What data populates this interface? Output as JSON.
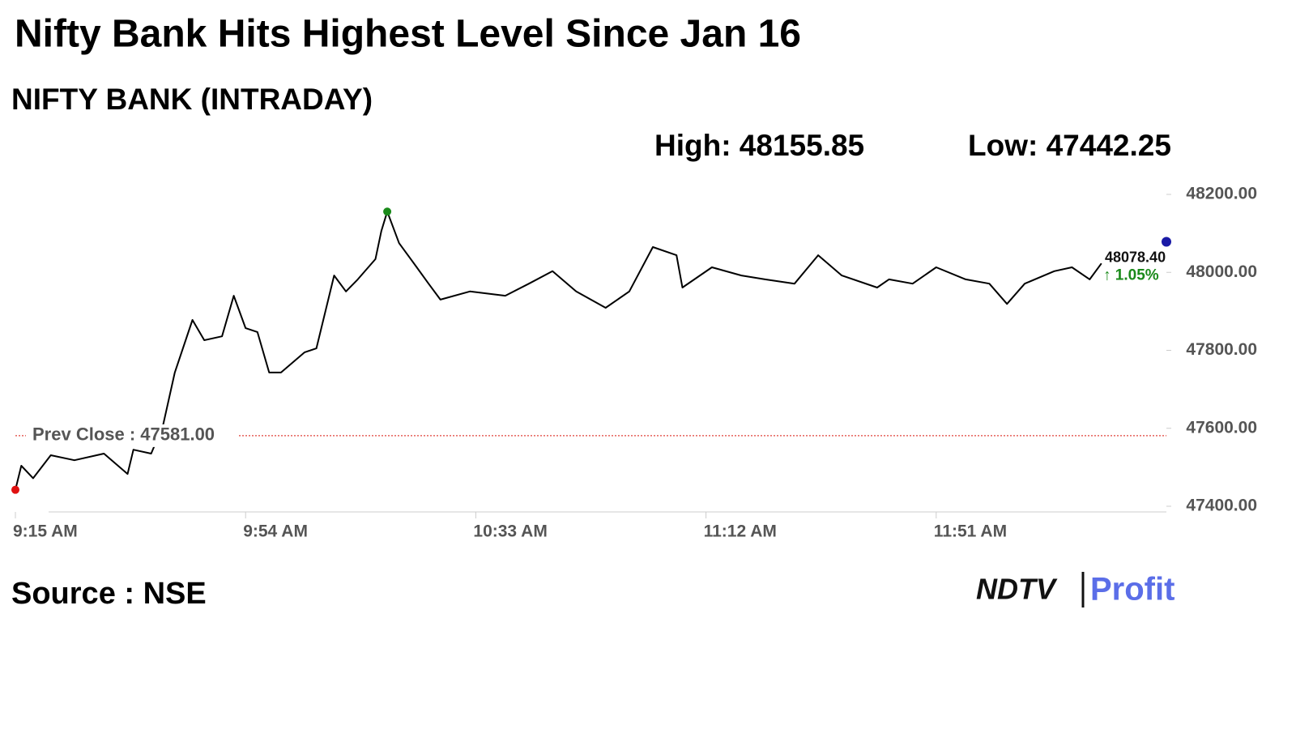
{
  "chart_data": {
    "type": "line",
    "title": "Nifty Bank Hits Highest Level Since Jan 16",
    "subtitle": "NIFTY BANK (INTRADAY)",
    "high_text": "High: 48155.85",
    "low_text": "Low: 47442.25",
    "source": "Source : NSE",
    "logo": [
      "NDTV",
      "Profit"
    ],
    "x": [
      "9:15 AM",
      "9:16 AM",
      "9:18 AM",
      "9:21 AM",
      "9:25 AM",
      "9:30 AM",
      "9:34 AM",
      "9:35 AM",
      "9:38 AM",
      "9:40 AM",
      "9:42 AM",
      "9:45 AM",
      "9:47 AM",
      "9:50 AM",
      "9:52 AM",
      "9:54 AM",
      "9:56 AM",
      "9:58 AM",
      "10:00 AM",
      "10:04 AM",
      "10:06 AM",
      "10:09 AM",
      "10:11 AM",
      "10:13 AM",
      "10:16 AM",
      "10:17 AM",
      "10:18 AM",
      "10:20 AM",
      "10:23 AM",
      "10:25 AM",
      "10:27 AM",
      "10:32 AM",
      "10:38 AM",
      "10:42 AM",
      "10:46 AM",
      "10:50 AM",
      "10:55 AM",
      "10:59 AM",
      "11:03 AM",
      "11:07 AM",
      "11:08 AM",
      "11:13 AM",
      "11:18 AM",
      "11:22 AM",
      "11:27 AM",
      "11:31 AM",
      "11:35 AM",
      "11:41 AM",
      "11:43 AM",
      "11:47 AM",
      "11:51 AM",
      "11:56 AM",
      "12:00 PM",
      "12:03 PM",
      "12:06 PM",
      "12:11 PM",
      "12:14 PM",
      "12:17 PM",
      "12:19 PM"
    ],
    "series": [
      {
        "name": "NIFTY BANK",
        "color": "#000000",
        "values": [
          47442.25,
          47504,
          47472,
          47531,
          47518,
          47535,
          47483,
          47545,
          47535,
          47607,
          47743,
          47878,
          47826,
          47836,
          47940,
          47857,
          47847,
          47743,
          47743,
          47795,
          47805,
          47992,
          47951,
          47982,
          48034,
          48106,
          48155.85,
          48075,
          48013,
          47971,
          47930,
          47951,
          47940,
          47971,
          48003,
          47951,
          47909,
          47951,
          48065,
          48044,
          47961,
          48013,
          47992,
          47982,
          47971,
          48044,
          47992,
          47961,
          47982,
          47971,
          48013,
          47982,
          47971,
          47919,
          47971,
          48003,
          48013,
          47982,
          48023
        ]
      }
    ],
    "xlim": [
      "9:15 AM",
      "12:30 PM"
    ],
    "xticks": [
      "9:15 AM",
      "9:54 AM",
      "10:33 AM",
      "11:12 AM",
      "11:51 AM"
    ],
    "ylim": [
      47400,
      48200
    ],
    "yticks": [
      {
        "value": 47400,
        "label": "47400.00"
      },
      {
        "value": 47600,
        "label": "47600.00"
      },
      {
        "value": 47800,
        "label": "47800.00"
      },
      {
        "value": 48000,
        "label": "48000.00"
      },
      {
        "value": 48200,
        "label": "48200.00"
      }
    ],
    "prev_close": {
      "value": 47581,
      "label": "Prev Close : 47581.00",
      "color": "#e0413a"
    },
    "last": {
      "value": 48078.4,
      "label": "48078.40",
      "change": "↑ 1.05%",
      "color": "#1a1aa6"
    },
    "high_color": "#1a8a1a",
    "low_color": "#e01010"
  }
}
